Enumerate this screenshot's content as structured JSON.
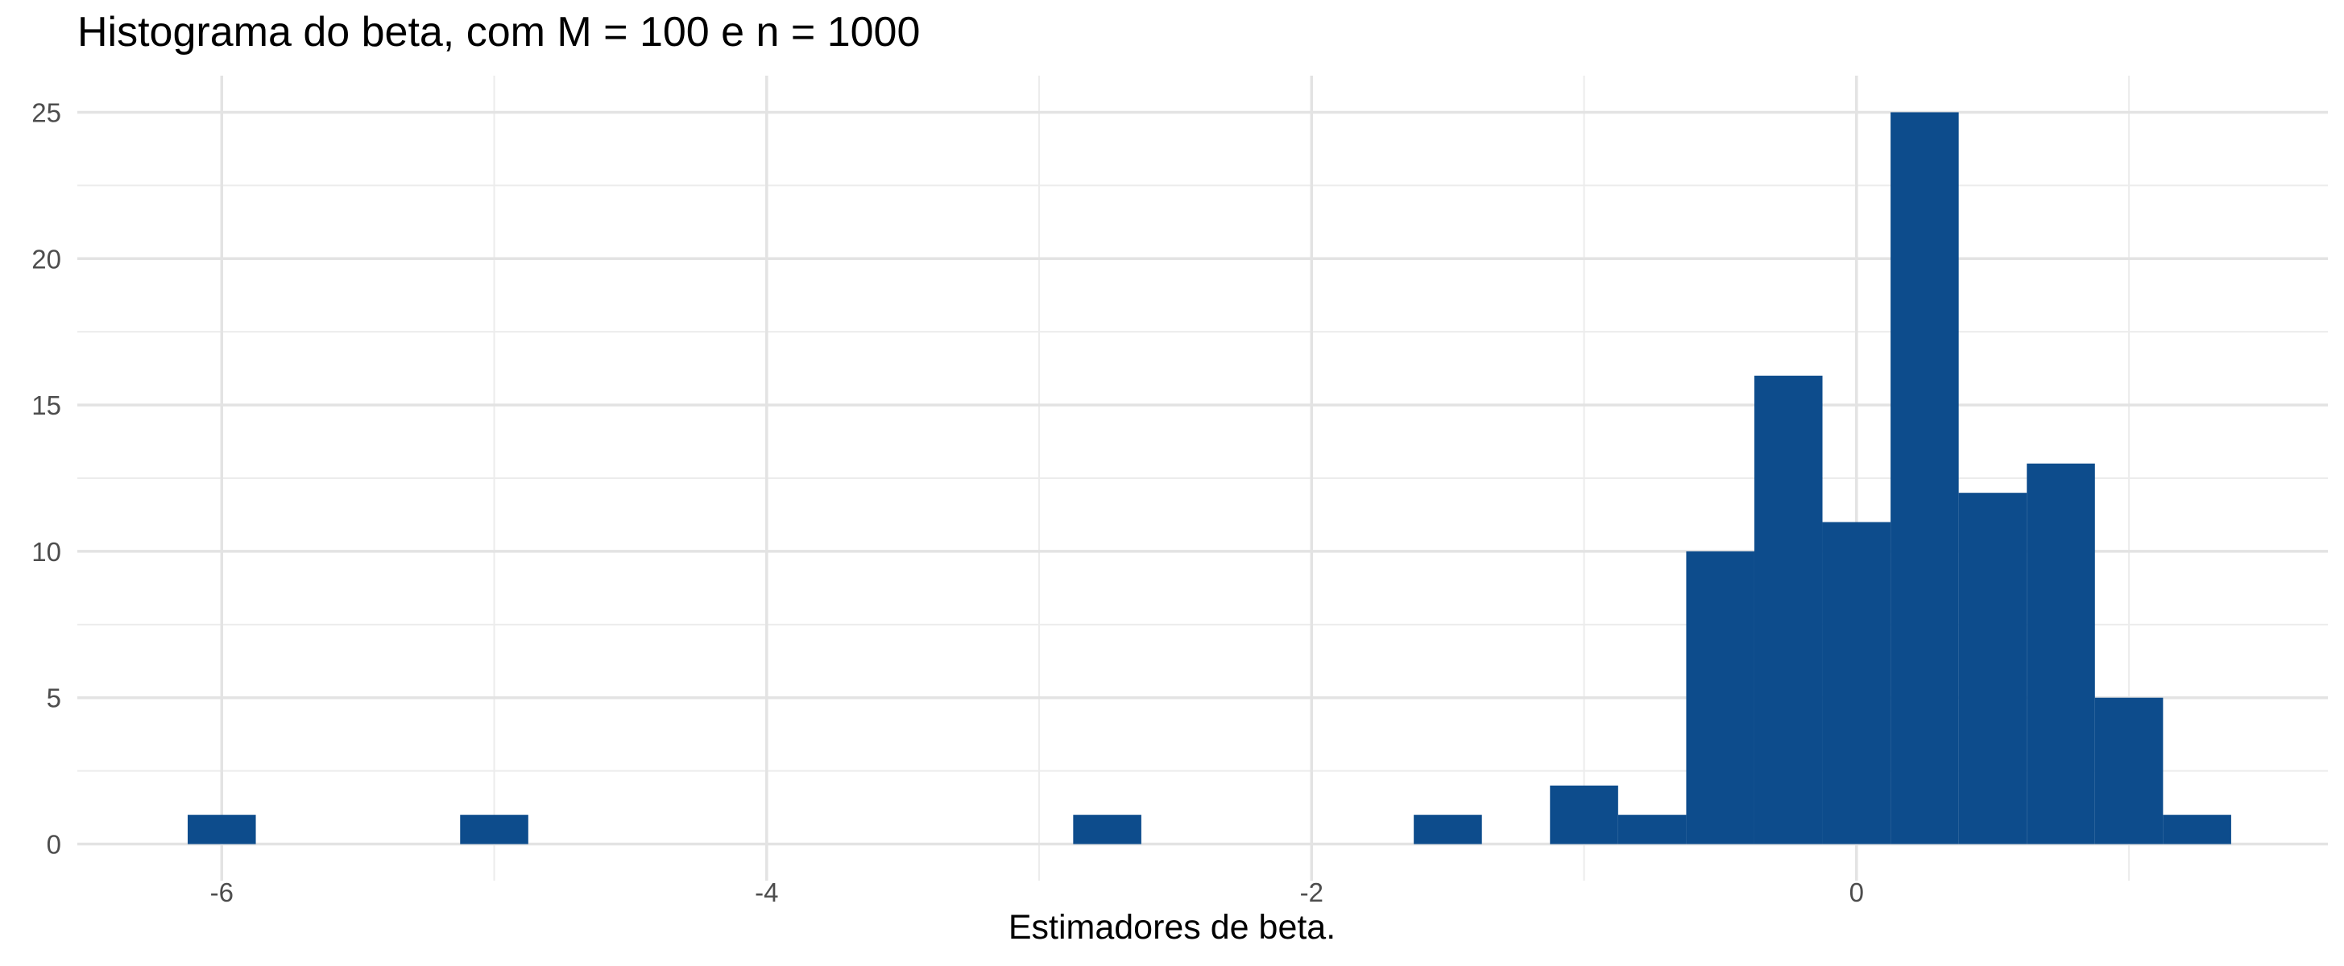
{
  "chart_data": {
    "type": "bar",
    "title": "Histograma do beta, com M = 100 e n = 1000",
    "xlabel": "Estimadores de beta.",
    "ylabel": "",
    "xlim": [
      -6.53,
      1.73
    ],
    "ylim": [
      -1.25,
      26.25
    ],
    "xticks": [
      -6,
      -4,
      -2,
      0
    ],
    "yticks": [
      0,
      5,
      10,
      15,
      20,
      25
    ],
    "grid": true,
    "bar_color": "#0d4c8c",
    "bin_width": 0.25,
    "bins": [
      {
        "x": -6.0,
        "count": 1
      },
      {
        "x": -5.0,
        "count": 1
      },
      {
        "x": -2.75,
        "count": 1
      },
      {
        "x": -1.5,
        "count": 1
      },
      {
        "x": -1.0,
        "count": 2
      },
      {
        "x": -0.75,
        "count": 1
      },
      {
        "x": -0.5,
        "count": 10
      },
      {
        "x": -0.25,
        "count": 16
      },
      {
        "x": 0.0,
        "count": 11
      },
      {
        "x": 0.25,
        "count": 25
      },
      {
        "x": 0.5,
        "count": 12
      },
      {
        "x": 0.75,
        "count": 13
      },
      {
        "x": 1.0,
        "count": 5
      },
      {
        "x": 1.25,
        "count": 1
      }
    ]
  }
}
